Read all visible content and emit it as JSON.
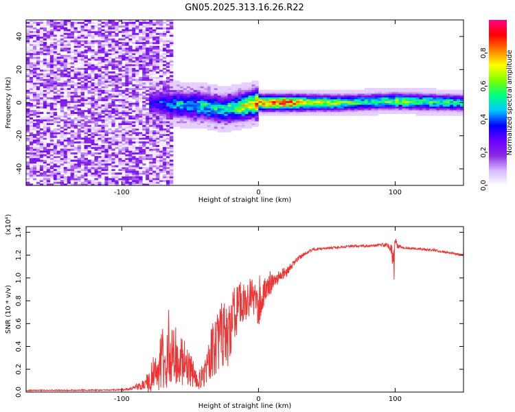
{
  "figure": {
    "title": "GN05.2025.313.16.26.R22"
  },
  "chart_data": [
    {
      "type": "heatmap",
      "name": "spectrogram",
      "xlabel": "Height of straight line (km)",
      "ylabel": "Frequency (Hz)",
      "xlim": [
        -170,
        150
      ],
      "ylim": [
        -50,
        50
      ],
      "xticks": [
        -100,
        0,
        100
      ],
      "xtick_labels": [
        "-100",
        "0",
        "100"
      ],
      "yticks": [
        -40,
        -20,
        0,
        20,
        40
      ],
      "ytick_labels": [
        "-40",
        "-20",
        "0",
        "20",
        "40"
      ],
      "grid": false,
      "colorbar": {
        "label": "Normalized spectral amplitude",
        "range": [
          0,
          1
        ],
        "ticks": [
          0.0,
          0.2,
          0.4,
          0.6,
          0.8
        ],
        "tick_labels": [
          "0.0",
          "0.2",
          "0.4",
          "0.6",
          "0.8"
        ],
        "colors": [
          "#ffffff",
          "#d8b8ff",
          "#8a2be2",
          "#6a00ff",
          "#0000ff",
          "#00c8ff",
          "#00ff80",
          "#80ff00",
          "#ffff00",
          "#ff8000",
          "#ff0000",
          "#ff0080"
        ]
      },
      "features": {
        "noise_region_x": [
          -170,
          -62
        ],
        "noise_band_amplitude": [
          0.05,
          0.25
        ],
        "signal_band_x": [
          -80,
          150
        ],
        "signal_center_hz": [
          {
            "x": -80,
            "y": 0
          },
          {
            "x": -60,
            "y": -1
          },
          {
            "x": -40,
            "y": -2
          },
          {
            "x": -25,
            "y": -4
          },
          {
            "x": -10,
            "y": -2
          },
          {
            "x": 0,
            "y": 0
          },
          {
            "x": 20,
            "y": 0
          },
          {
            "x": 60,
            "y": 0
          },
          {
            "x": 100,
            "y": 1
          },
          {
            "x": 150,
            "y": 0
          }
        ],
        "signal_peak_amplitude": [
          {
            "x": -80,
            "a": 0.3
          },
          {
            "x": -60,
            "a": 0.45
          },
          {
            "x": -40,
            "a": 0.5
          },
          {
            "x": -20,
            "a": 0.55
          },
          {
            "x": 0,
            "a": 0.85
          },
          {
            "x": 20,
            "a": 0.95
          },
          {
            "x": 40,
            "a": 0.75
          },
          {
            "x": 80,
            "a": 0.55
          },
          {
            "x": 100,
            "a": 0.65
          },
          {
            "x": 150,
            "a": 0.55
          }
        ]
      }
    },
    {
      "type": "line",
      "name": "snr",
      "xlabel": "Height of straight line (km)",
      "ylabel": "SNR (10 * v/v)",
      "multiplier_label": "(x10⁴)",
      "xlim": [
        -170,
        150
      ],
      "ylim": [
        0,
        1.45
      ],
      "xticks": [
        -100,
        0,
        100
      ],
      "xtick_labels": [
        "-100",
        "0",
        "100"
      ],
      "yticks": [
        0.0,
        0.2,
        0.4,
        0.6,
        0.8,
        1.0,
        1.2,
        1.4
      ],
      "ytick_labels": [
        "0.0",
        "0.2",
        "0.4",
        "0.6",
        "0.8",
        "1.0",
        "1.2",
        "1.4"
      ],
      "grid": false,
      "series": [
        {
          "name": "SNR",
          "color": "#ee3333",
          "x": [
            -170,
            -140,
            -110,
            -100,
            -95,
            -90,
            -85,
            -80,
            -75,
            -70,
            -65,
            -60,
            -55,
            -50,
            -45,
            -40,
            -35,
            -30,
            -25,
            -20,
            -15,
            -10,
            -5,
            0,
            5,
            10,
            15,
            20,
            25,
            30,
            35,
            40,
            50,
            60,
            70,
            80,
            90,
            95,
            97,
            98,
            99,
            100,
            102,
            105,
            110,
            120,
            130,
            140,
            150
          ],
          "y": [
            0.015,
            0.015,
            0.018,
            0.02,
            0.025,
            0.04,
            0.06,
            0.1,
            0.18,
            0.28,
            0.3,
            0.32,
            0.25,
            0.2,
            0.1,
            0.15,
            0.3,
            0.45,
            0.5,
            0.55,
            0.75,
            0.8,
            0.85,
            0.75,
            0.9,
            0.95,
            1.0,
            1.05,
            1.12,
            1.18,
            1.22,
            1.25,
            1.26,
            1.27,
            1.28,
            1.28,
            1.29,
            1.28,
            1.26,
            1.2,
            1.08,
            1.3,
            1.28,
            1.27,
            1.26,
            1.25,
            1.24,
            1.22,
            1.2
          ],
          "noise_amplitude": [
            0.005,
            0.005,
            0.005,
            0.006,
            0.01,
            0.02,
            0.04,
            0.1,
            0.2,
            0.28,
            0.28,
            0.26,
            0.22,
            0.15,
            0.08,
            0.12,
            0.25,
            0.3,
            0.3,
            0.32,
            0.22,
            0.2,
            0.15,
            0.18,
            0.1,
            0.08,
            0.06,
            0.05,
            0.03,
            0.02,
            0.015,
            0.012,
            0.01,
            0.01,
            0.01,
            0.01,
            0.012,
            0.02,
            0.04,
            0.1,
            0.18,
            0.06,
            0.02,
            0.012,
            0.01,
            0.01,
            0.01,
            0.01,
            0.01
          ]
        }
      ]
    }
  ]
}
